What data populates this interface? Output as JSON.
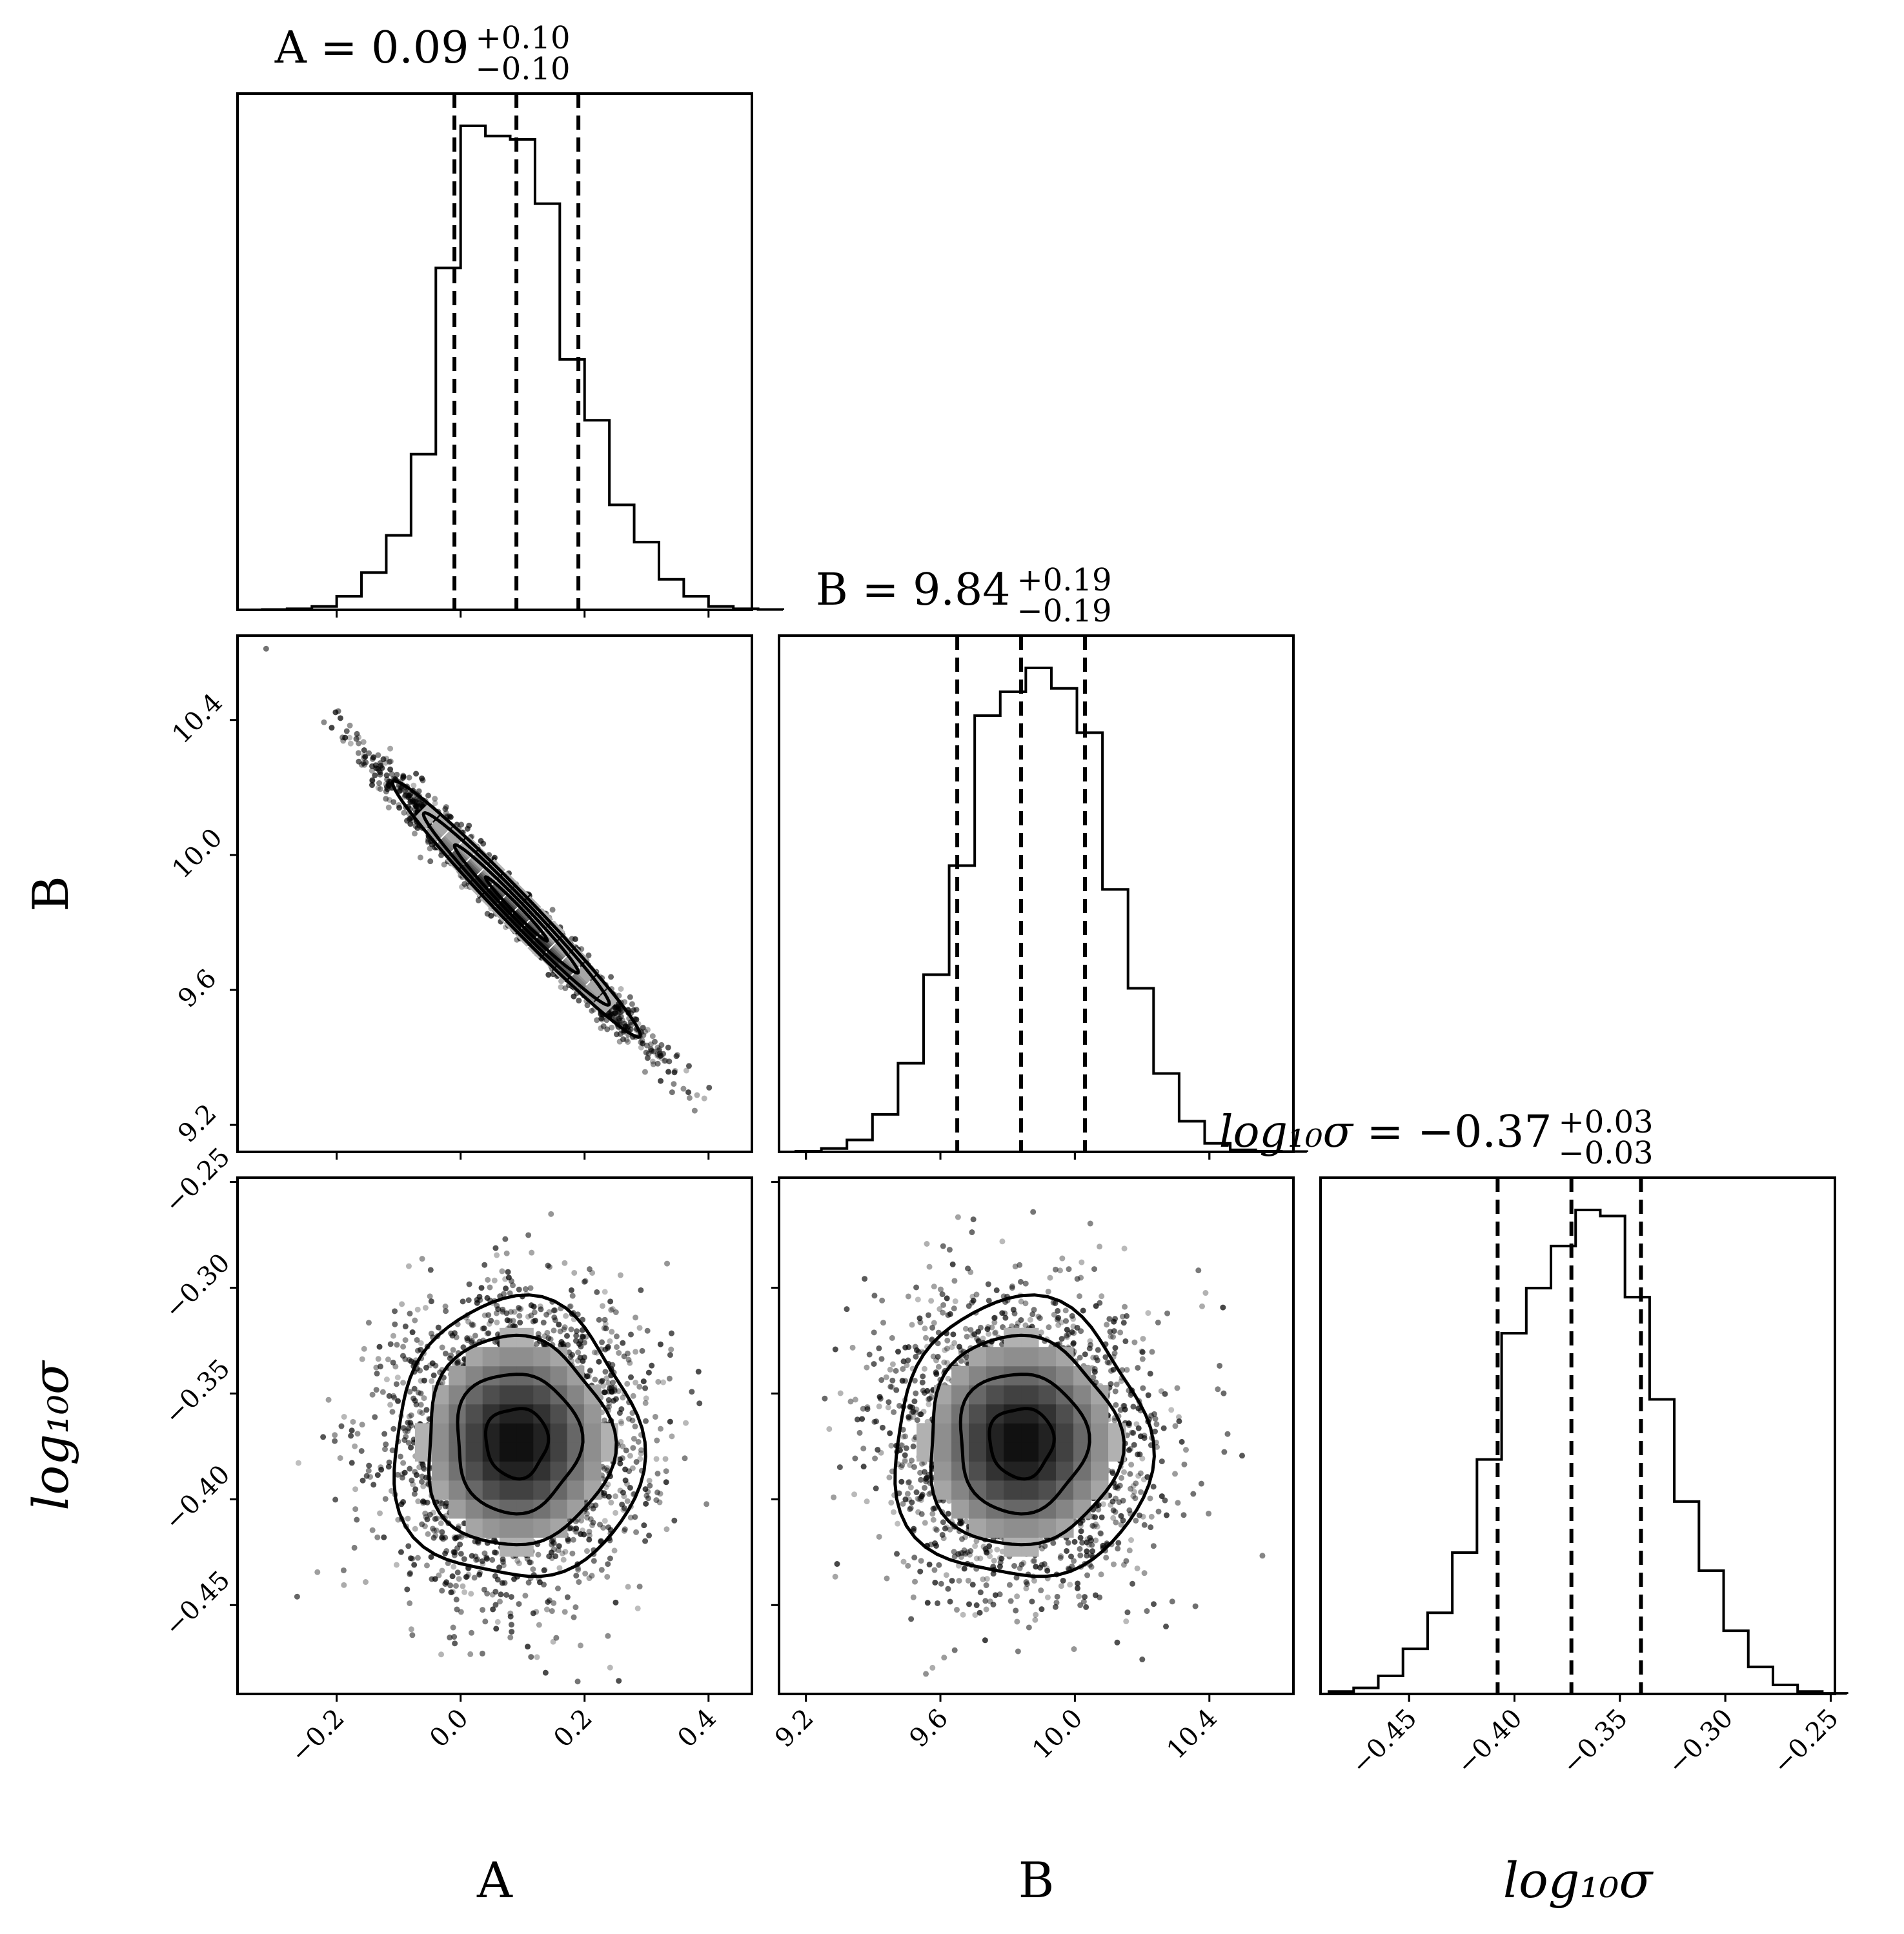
{
  "chart_data": {
    "type": "corner",
    "parameters": [
      {
        "name": "A",
        "label": "A",
        "italic": false,
        "title": "A = 0.09",
        "title_value": "0.09",
        "title_plus": "+0.10",
        "title_minus": "−0.10",
        "median": 0.09,
        "q16": -0.01,
        "q84": 0.19,
        "range": [
          -0.36,
          0.47
        ],
        "ticks": [
          -0.2,
          0.0,
          0.2,
          0.4
        ],
        "tick_labels": [
          "−0.2",
          "0.0",
          "0.2",
          "0.4"
        ],
        "hist_edges_start": -0.32,
        "hist_bin_width": 0.04,
        "hist_counts": [
          1,
          3,
          10,
          40,
          110,
          220,
          460,
          1010,
          1430,
          1400,
          1390,
          1200,
          740,
          560,
          310,
          200,
          90,
          40,
          10,
          3,
          1
        ]
      },
      {
        "name": "B",
        "label": "B",
        "italic": false,
        "title": "B = 9.84",
        "title_value": "9.84",
        "title_plus": "+0.19",
        "title_minus": "−0.19",
        "median": 9.84,
        "q16": 9.65,
        "q84": 10.03,
        "range": [
          9.12,
          10.65
        ],
        "ticks": [
          9.2,
          9.6,
          10.0,
          10.4
        ],
        "tick_labels": [
          "9.2",
          "9.6",
          "10.0",
          "10.4"
        ],
        "hist_edges_start": 9.17,
        "hist_bin_width": 0.076,
        "hist_counts": [
          2,
          10,
          35,
          110,
          260,
          520,
          840,
          1280,
          1350,
          1420,
          1360,
          1230,
          770,
          480,
          230,
          90,
          25,
          6,
          2,
          1
        ]
      },
      {
        "name": "log10sigma",
        "label": "log₁₀σ",
        "italic": true,
        "title": "log₁₀σ = −0.37",
        "title_value": "−0.37",
        "title_plus": "+0.03",
        "title_minus": "−0.03",
        "median": -0.373,
        "q16": -0.408,
        "q84": -0.34,
        "range": [
          -0.492,
          -0.248
        ],
        "ticks": [
          -0.45,
          -0.4,
          -0.35,
          -0.3,
          -0.25
        ],
        "tick_labels": [
          "−0.45",
          "−0.40",
          "−0.35",
          "−0.30",
          "−0.25"
        ],
        "hist_edges_start": -0.488,
        "hist_bin_width": 0.0117,
        "hist_counts": [
          8,
          20,
          60,
          150,
          270,
          470,
          780,
          1200,
          1350,
          1490,
          1610,
          1590,
          1320,
          980,
          640,
          410,
          210,
          90,
          30,
          8,
          2
        ]
      }
    ],
    "pairs": [
      {
        "x": "A",
        "y": "B",
        "correlation": -0.985,
        "sd_x": 0.1,
        "sd_y": 0.19,
        "contours_sigma": [
          0.5,
          1.0,
          1.5,
          2.0
        ]
      },
      {
        "x": "A",
        "y": "log10sigma",
        "correlation": 0.0,
        "sd_x": 0.1,
        "sd_y": 0.033,
        "contours_sigma": [
          0.5,
          1.0,
          1.5,
          2.0
        ]
      },
      {
        "x": "B",
        "y": "log10sigma",
        "correlation": 0.0,
        "sd_x": 0.19,
        "sd_y": 0.033,
        "contours_sigma": [
          0.5,
          1.0,
          1.5,
          2.0
        ]
      }
    ],
    "quantile_line_style": "dashed",
    "colors": {
      "ink": "#000000",
      "background": "#ffffff"
    }
  }
}
